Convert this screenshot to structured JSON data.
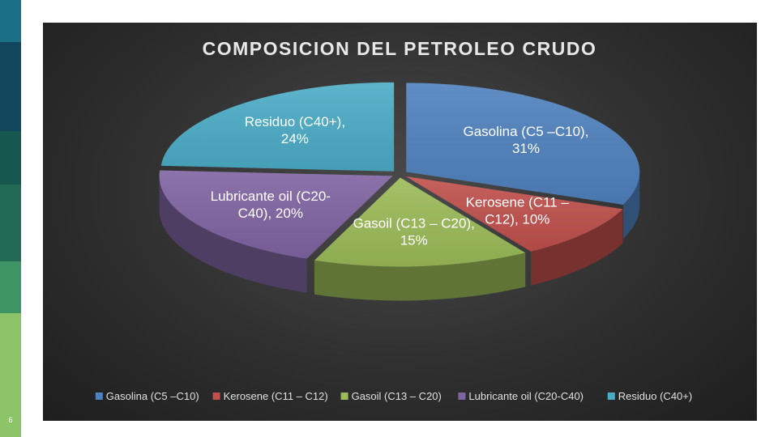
{
  "page": {
    "number": "6"
  },
  "colors": {
    "sidebar": [
      "#1b6f86",
      "#12465c",
      "#16574f",
      "#226a53",
      "#3f9466",
      "#8dc46a"
    ]
  },
  "chart_data": {
    "type": "pie",
    "title": "COMPOSICION DEL PETROLEO CRUDO",
    "style": "3d-exploded-oval",
    "categories": [
      "Gasolina (C5 –C10)",
      "Kerosene (C11 – C12)",
      "Gasoil (C13 – C20)",
      "Lubricante oil (C20-C40)",
      "Residuo (C40+)"
    ],
    "values": [
      31,
      10,
      15,
      20,
      24
    ],
    "unit": "%",
    "data_labels": [
      [
        "Gasolina (C5 –C10),",
        "31%"
      ],
      [
        "Kerosene (C11 –",
        "C12), 10%"
      ],
      [
        "Gasoil (C13 – C20),",
        "15%"
      ],
      [
        "Lubricante oil (C20-",
        "C40), 20%"
      ],
      [
        "Residuo (C40+),",
        "24%"
      ]
    ],
    "colors": [
      "#4f81bd",
      "#c0504d",
      "#9bbb59",
      "#8064a2",
      "#4bacc6"
    ],
    "legend_position": "bottom",
    "legend": [
      "Gasolina (C5 –C10)",
      "Kerosene (C11 – C12)",
      "Gasoil (C13 – C20)",
      "Lubricante oil (C20-C40)",
      "Residuo (C40+)"
    ]
  }
}
